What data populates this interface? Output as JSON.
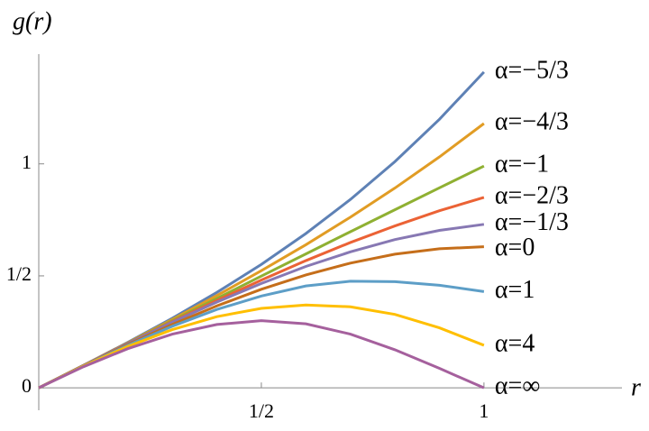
{
  "chart_data": {
    "type": "line",
    "x_label": "r",
    "y_label": "g(r)",
    "x": [
      0,
      0.1,
      0.2,
      0.3,
      0.4,
      0.5,
      0.6,
      0.7,
      0.8,
      0.9,
      1
    ],
    "xlim": [
      0,
      1.31
    ],
    "ylim": [
      -0.1,
      1.49
    ],
    "xticks": [
      {
        "value": 0.5,
        "label": "1/2"
      },
      1
    ],
    "yticks": [
      0,
      {
        "value": 0.5,
        "label": "1/2"
      },
      1
    ],
    "series": [
      {
        "name": "α=−5/3",
        "color": "#5e81b5",
        "values": [
          0,
          0.1,
          0.203,
          0.311,
          0.426,
          0.551,
          0.689,
          0.841,
          1.01,
          1.199,
          1.41
        ]
      },
      {
        "name": "α=−4/3",
        "color": "#e19c24",
        "values": [
          0,
          0.1,
          0.201,
          0.305,
          0.412,
          0.523,
          0.639,
          0.762,
          0.892,
          1.031,
          1.18
        ]
      },
      {
        "name": "α=−1",
        "color": "#8fb032",
        "values": [
          0,
          0.1,
          0.2,
          0.3,
          0.399,
          0.499,
          0.598,
          0.697,
          0.795,
          0.893,
          0.99
        ]
      },
      {
        "name": "α=−2/3",
        "color": "#eb6235",
        "values": [
          0,
          0.1,
          0.199,
          0.296,
          0.39,
          0.481,
          0.568,
          0.649,
          0.723,
          0.791,
          0.85
        ]
      },
      {
        "name": "α=−1/3",
        "color": "#8778b3",
        "values": [
          0,
          0.1,
          0.198,
          0.293,
          0.383,
          0.466,
          0.542,
          0.607,
          0.662,
          0.703,
          0.73
        ]
      },
      {
        "name": "α=0",
        "color": "#c56e1a",
        "values": [
          0,
          0.099,
          0.194,
          0.283,
          0.366,
          0.44,
          0.504,
          0.557,
          0.597,
          0.621,
          0.63
        ]
      },
      {
        "name": "α=1",
        "color": "#5d9ec7",
        "values": [
          0,
          0.098,
          0.19,
          0.275,
          0.35,
          0.41,
          0.455,
          0.476,
          0.474,
          0.458,
          0.43
        ]
      },
      {
        "name": "α=4",
        "color": "#ffbf00",
        "values": [
          0,
          0.097,
          0.185,
          0.26,
          0.318,
          0.355,
          0.37,
          0.362,
          0.328,
          0.268,
          0.19
        ]
      },
      {
        "name": "α=∞",
        "color": "#a5609d",
        "values": [
          0,
          0.094,
          0.175,
          0.24,
          0.283,
          0.3,
          0.286,
          0.24,
          0.17,
          0.087,
          0
        ]
      }
    ]
  }
}
